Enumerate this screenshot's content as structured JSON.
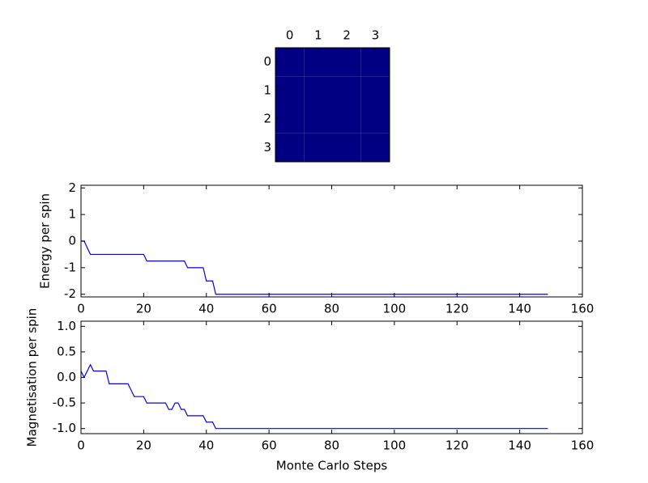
{
  "chart_data": [
    {
      "type": "heatmap",
      "color": "#000080",
      "values": [
        [
          -1,
          -1,
          -1,
          -1
        ],
        [
          -1,
          -1,
          -1,
          -1
        ],
        [
          -1,
          -1,
          -1,
          -1
        ],
        [
          -1,
          -1,
          -1,
          -1
        ]
      ],
      "xlim": [
        -0.5,
        3.5
      ],
      "ylim": [
        -0.5,
        3.5
      ],
      "xticks": [
        0,
        1,
        2,
        3
      ],
      "yticks": [
        0,
        1,
        2,
        3
      ]
    },
    {
      "type": "line",
      "ylabel": "Energy per spin",
      "color": "#0000ff",
      "xlim": [
        0,
        160
      ],
      "ylim": [
        -2.1,
        2.1
      ],
      "xticks": [
        0,
        20,
        40,
        60,
        80,
        100,
        120,
        140,
        160
      ],
      "yticks": [
        -2,
        -1,
        0,
        1,
        2
      ],
      "x": [
        0,
        1,
        2,
        3,
        4,
        5,
        6,
        7,
        8,
        9,
        10,
        11,
        12,
        13,
        14,
        15,
        16,
        17,
        18,
        19,
        20,
        21,
        22,
        23,
        24,
        25,
        26,
        27,
        28,
        29,
        30,
        31,
        32,
        33,
        34,
        35,
        36,
        37,
        38,
        39,
        40,
        41,
        42,
        43,
        44,
        45,
        46,
        47,
        48,
        49,
        50,
        51,
        52,
        53,
        54,
        55,
        56,
        57,
        58,
        59,
        60,
        61,
        62,
        63,
        64,
        65,
        66,
        67,
        68,
        69,
        70,
        71,
        72,
        73,
        74,
        75,
        76,
        77,
        78,
        79,
        80,
        81,
        82,
        83,
        84,
        85,
        86,
        87,
        88,
        89,
        90,
        91,
        92,
        93,
        94,
        95,
        96,
        97,
        98,
        99,
        100,
        101,
        102,
        103,
        104,
        105,
        106,
        107,
        108,
        109,
        110,
        111,
        112,
        113,
        114,
        115,
        116,
        117,
        118,
        119,
        120,
        121,
        122,
        123,
        124,
        125,
        126,
        127,
        128,
        129,
        130,
        131,
        132,
        133,
        134,
        135,
        136,
        137,
        138,
        139,
        140,
        141,
        142,
        143,
        144,
        145,
        146,
        147,
        148,
        149
      ],
      "values": [
        0,
        0,
        -0.25,
        -0.5,
        -0.5,
        -0.5,
        -0.5,
        -0.5,
        -0.5,
        -0.5,
        -0.5,
        -0.5,
        -0.5,
        -0.5,
        -0.5,
        -0.5,
        -0.5,
        -0.5,
        -0.5,
        -0.5,
        -0.5,
        -0.75,
        -0.75,
        -0.75,
        -0.75,
        -0.75,
        -0.75,
        -0.75,
        -0.75,
        -0.75,
        -0.75,
        -0.75,
        -0.75,
        -0.75,
        -1,
        -1,
        -1,
        -1,
        -1,
        -1,
        -1.5,
        -1.5,
        -1.5,
        -2,
        -2,
        -2,
        -2,
        -2,
        -2,
        -2,
        -2,
        -2,
        -2,
        -2,
        -2,
        -2,
        -2,
        -2,
        -2,
        -2,
        -2,
        -2,
        -2,
        -2,
        -2,
        -2,
        -2,
        -2,
        -2,
        -2,
        -2,
        -2,
        -2,
        -2,
        -2,
        -2,
        -2,
        -2,
        -2,
        -2,
        -2,
        -2,
        -2,
        -2,
        -2,
        -2,
        -2,
        -2,
        -2,
        -2,
        -2,
        -2,
        -2,
        -2,
        -2,
        -2,
        -2,
        -2,
        -2,
        -2,
        -2,
        -2,
        -2,
        -2,
        -2,
        -2,
        -2,
        -2,
        -2,
        -2,
        -2,
        -2,
        -2,
        -2,
        -2,
        -2,
        -2,
        -2,
        -2,
        -2,
        -2,
        -2,
        -2,
        -2,
        -2,
        -2,
        -2,
        -2,
        -2,
        -2,
        -2,
        -2,
        -2,
        -2,
        -2,
        -2,
        -2,
        -2,
        -2,
        -2,
        -2,
        -2,
        -2,
        -2,
        -2,
        -2,
        -2,
        -2,
        -2,
        -2
      ]
    },
    {
      "type": "line",
      "ylabel": "Magnetisation per spin",
      "xlabel": "Monte Carlo Steps",
      "color": "#0000ff",
      "xlim": [
        0,
        160
      ],
      "ylim": [
        -1.1,
        1.1
      ],
      "xticks": [
        0,
        20,
        40,
        60,
        80,
        100,
        120,
        140,
        160
      ],
      "yticks": [
        {
          "value": -1,
          "label": "-1.0"
        },
        {
          "value": -0.5,
          "label": "-0.5"
        },
        {
          "value": 0,
          "label": "0.0"
        },
        {
          "value": 0.5,
          "label": "0.5"
        },
        {
          "value": 1,
          "label": "1.0"
        }
      ],
      "x": [
        0,
        1,
        2,
        3,
        4,
        5,
        6,
        7,
        8,
        9,
        10,
        11,
        12,
        13,
        14,
        15,
        16,
        17,
        18,
        19,
        20,
        21,
        22,
        23,
        24,
        25,
        26,
        27,
        28,
        29,
        30,
        31,
        32,
        33,
        34,
        35,
        36,
        37,
        38,
        39,
        40,
        41,
        42,
        43,
        44,
        45,
        46,
        47,
        48,
        49,
        50,
        51,
        52,
        53,
        54,
        55,
        56,
        57,
        58,
        59,
        60,
        61,
        62,
        63,
        64,
        65,
        66,
        67,
        68,
        69,
        70,
        71,
        72,
        73,
        74,
        75,
        76,
        77,
        78,
        79,
        80,
        81,
        82,
        83,
        84,
        85,
        86,
        87,
        88,
        89,
        90,
        91,
        92,
        93,
        94,
        95,
        96,
        97,
        98,
        99,
        100,
        101,
        102,
        103,
        104,
        105,
        106,
        107,
        108,
        109,
        110,
        111,
        112,
        113,
        114,
        115,
        116,
        117,
        118,
        119,
        120,
        121,
        122,
        123,
        124,
        125,
        126,
        127,
        128,
        129,
        130,
        131,
        132,
        133,
        134,
        135,
        136,
        137,
        138,
        139,
        140,
        141,
        142,
        143,
        144,
        145,
        146,
        147,
        148,
        149
      ],
      "values": [
        0.125,
        0,
        0.125,
        0.25,
        0.125,
        0.125,
        0.125,
        0.125,
        0.125,
        -0.125,
        -0.125,
        -0.125,
        -0.125,
        -0.125,
        -0.125,
        -0.125,
        -0.25,
        -0.375,
        -0.375,
        -0.375,
        -0.375,
        -0.5,
        -0.5,
        -0.5,
        -0.5,
        -0.5,
        -0.5,
        -0.5,
        -0.625,
        -0.625,
        -0.5,
        -0.5,
        -0.625,
        -0.625,
        -0.75,
        -0.75,
        -0.75,
        -0.75,
        -0.75,
        -0.75,
        -0.875,
        -0.875,
        -0.875,
        -1,
        -1,
        -1,
        -1,
        -1,
        -1,
        -1,
        -1,
        -1,
        -1,
        -1,
        -1,
        -1,
        -1,
        -1,
        -1,
        -1,
        -1,
        -1,
        -1,
        -1,
        -1,
        -1,
        -1,
        -1,
        -1,
        -1,
        -1,
        -1,
        -1,
        -1,
        -1,
        -1,
        -1,
        -1,
        -1,
        -1,
        -1,
        -1,
        -1,
        -1,
        -1,
        -1,
        -1,
        -1,
        -1,
        -1,
        -1,
        -1,
        -1,
        -1,
        -1,
        -1,
        -1,
        -1,
        -1,
        -1,
        -1,
        -1,
        -1,
        -1,
        -1,
        -1,
        -1,
        -1,
        -1,
        -1,
        -1,
        -1,
        -1,
        -1,
        -1,
        -1,
        -1,
        -1,
        -1,
        -1,
        -1,
        -1,
        -1,
        -1,
        -1,
        -1,
        -1,
        -1,
        -1,
        -1,
        -1,
        -1,
        -1,
        -1,
        -1,
        -1,
        -1,
        -1,
        -1,
        -1,
        -1,
        -1,
        -1,
        -1,
        -1,
        -1,
        -1,
        -1,
        -1,
        -1
      ]
    }
  ]
}
